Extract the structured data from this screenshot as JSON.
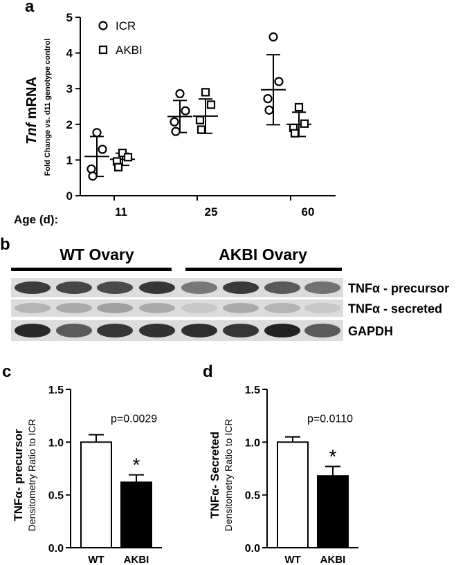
{
  "panels": {
    "a": "a",
    "b": "b",
    "c": "c",
    "d": "d"
  },
  "chart_data": [
    {
      "id": "a",
      "type": "scatter",
      "ylabel_italic": "Tnf",
      "ylabel_main": " mRNA",
      "ylabel_sub": "Fold Change vs. d11 genotype control",
      "xlabel": "Age (d):",
      "categories": [
        "11",
        "25",
        "60"
      ],
      "ylim": [
        0,
        5
      ],
      "yticks": [
        "0",
        "1",
        "2",
        "3",
        "4",
        "5"
      ],
      "legend": "top-left",
      "series": [
        {
          "name": "ICR",
          "marker": "circle",
          "points": [
            [
              1.77,
              1.3,
              0.75,
              0.55
            ],
            [
              2.86,
              2.38,
              2.07,
              1.8
            ],
            [
              4.45,
              3.2,
              2.72,
              2.4
            ]
          ],
          "mean": [
            1.1,
            2.22,
            2.97
          ],
          "sd": [
            0.56,
            0.45,
            0.98
          ]
        },
        {
          "name": "AKBI",
          "marker": "square",
          "points": [
            [
              1.2,
              1.08,
              0.96,
              0.8
            ],
            [
              2.9,
              2.55,
              2.12,
              1.85
            ],
            [
              2.48,
              2.02,
              1.9,
              1.75
            ]
          ],
          "mean": [
            1.02,
            2.23,
            2.0
          ],
          "sd": [
            0.17,
            0.48,
            0.34
          ]
        }
      ]
    },
    {
      "id": "c",
      "type": "bar",
      "ylabel_main": "TNFα- precursor",
      "ylabel_sub": "Densitometry Ratio to ICR",
      "categories": [
        "WT",
        "AKBI"
      ],
      "values": [
        1.0,
        0.62
      ],
      "errors": [
        0.07,
        0.07
      ],
      "colors": [
        "#ffffff",
        "#000000"
      ],
      "ylim": [
        0,
        1.5
      ],
      "yticks": [
        "0.0",
        "0.5",
        "1.0",
        "1.5"
      ],
      "pvalue": "p=0.0029",
      "star": "*"
    },
    {
      "id": "d",
      "type": "bar",
      "ylabel_main": "TNFα- Secreted",
      "ylabel_sub": "Densitometry Ratio to ICR",
      "categories": [
        "WT",
        "AKBI"
      ],
      "values": [
        1.0,
        0.68
      ],
      "errors": [
        0.05,
        0.09
      ],
      "colors": [
        "#ffffff",
        "#000000"
      ],
      "ylim": [
        0,
        1.5
      ],
      "yticks": [
        "0.0",
        "0.5",
        "1.0",
        "1.5"
      ],
      "pvalue": "p=0.0110",
      "star": "*"
    }
  ],
  "blot": {
    "groups": [
      "WT Ovary",
      "AKBI Ovary"
    ],
    "rows": [
      {
        "label": "TNFα - precursor",
        "intensity": [
          0.85,
          0.8,
          0.78,
          0.88,
          0.55,
          0.86,
          0.7,
          0.58
        ]
      },
      {
        "label": "TNFα - secreted",
        "intensity": [
          0.25,
          0.3,
          0.35,
          0.3,
          0.15,
          0.3,
          0.25,
          0.15
        ]
      },
      {
        "label": "GAPDH",
        "intensity": [
          0.95,
          0.7,
          0.88,
          0.9,
          0.92,
          0.88,
          0.98,
          0.7
        ]
      }
    ]
  }
}
